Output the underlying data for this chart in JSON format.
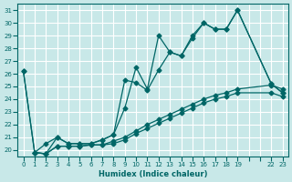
{
  "xlabel": "Humidex (Indice chaleur)",
  "ylabel": "",
  "bg_color": "#c8e8e8",
  "line_color": "#006666",
  "grid_color": "#ffffff",
  "xlim": [
    -0.5,
    23.5
  ],
  "ylim": [
    19.5,
    31.5
  ],
  "yticks": [
    20,
    21,
    22,
    23,
    24,
    25,
    26,
    27,
    28,
    29,
    30,
    31
  ],
  "xtick_positions": [
    0,
    1,
    2,
    3,
    4,
    5,
    6,
    7,
    8,
    9,
    10,
    11,
    12,
    13,
    14,
    15,
    16,
    17,
    18,
    19,
    20,
    21,
    22,
    23
  ],
  "xtick_labels": [
    "0",
    "1",
    "2",
    "3",
    "4",
    "5",
    "6",
    "7",
    "8",
    "9",
    "10",
    "11",
    "12",
    "13",
    "14",
    "15",
    "16",
    "17",
    "18",
    "19",
    "",
    "",
    "22",
    "23"
  ],
  "lines": [
    {
      "x": [
        0,
        1,
        2,
        3,
        4,
        5,
        6,
        7,
        8,
        9,
        10,
        11,
        12,
        13,
        14,
        15,
        16,
        17,
        18,
        19,
        22,
        23
      ],
      "y": [
        26.2,
        19.8,
        19.7,
        21.0,
        20.5,
        20.5,
        20.5,
        20.8,
        21.2,
        23.3,
        26.5,
        24.8,
        29.0,
        27.7,
        27.4,
        29.0,
        30.0,
        29.5,
        29.5,
        31.0,
        25.2,
        24.5
      ]
    },
    {
      "x": [
        0,
        1,
        2,
        3,
        4,
        5,
        6,
        7,
        8,
        9,
        10,
        11,
        12,
        13,
        14,
        15,
        16,
        17,
        18,
        19,
        22,
        23
      ],
      "y": [
        26.2,
        19.8,
        20.5,
        21.0,
        20.5,
        20.5,
        20.5,
        20.8,
        21.2,
        25.5,
        25.3,
        24.7,
        26.3,
        27.7,
        27.4,
        28.8,
        30.0,
        29.5,
        29.5,
        31.0,
        25.2,
        24.5
      ]
    },
    {
      "x": [
        1,
        2,
        3,
        4,
        5,
        6,
        7,
        8,
        9,
        10,
        11,
        12,
        13,
        14,
        15,
        16,
        17,
        18,
        19,
        22,
        23
      ],
      "y": [
        19.8,
        19.7,
        20.3,
        20.3,
        20.3,
        20.4,
        20.4,
        20.5,
        20.8,
        21.3,
        21.7,
        22.1,
        22.5,
        22.9,
        23.3,
        23.7,
        24.0,
        24.2,
        24.5,
        24.5,
        24.2
      ]
    },
    {
      "x": [
        1,
        2,
        3,
        4,
        5,
        6,
        7,
        8,
        9,
        10,
        11,
        12,
        13,
        14,
        15,
        16,
        17,
        18,
        19,
        22,
        23
      ],
      "y": [
        19.8,
        19.7,
        20.3,
        20.3,
        20.3,
        20.4,
        20.4,
        20.7,
        21.0,
        21.5,
        22.0,
        22.4,
        22.8,
        23.2,
        23.6,
        24.0,
        24.3,
        24.5,
        24.8,
        25.1,
        24.8
      ]
    }
  ]
}
